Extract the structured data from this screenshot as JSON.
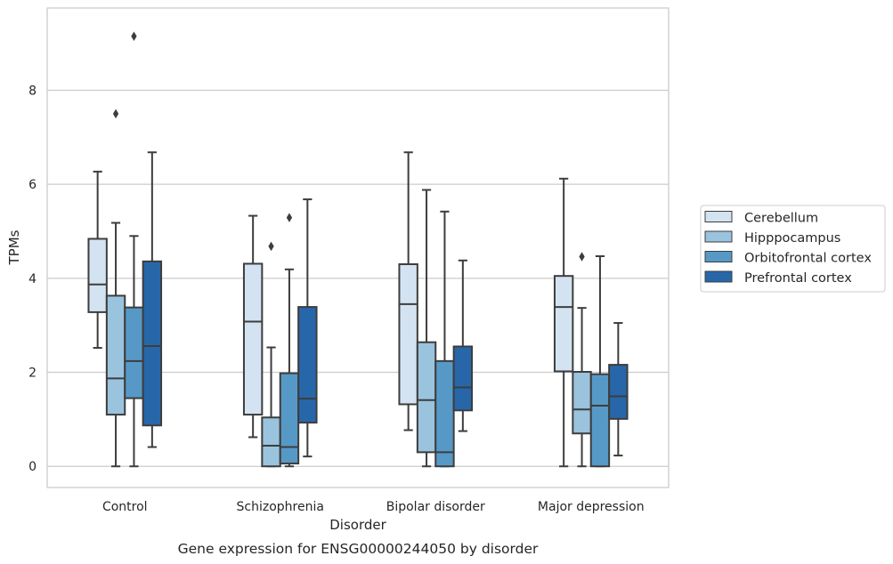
{
  "chart_data": {
    "type": "box",
    "title": "",
    "caption": "Gene expression for ENSG00000244050 by disorder",
    "xlabel": "Disorder",
    "ylabel": "TPMs",
    "ylim": [
      -0.45,
      9.75
    ],
    "yticks": [
      0,
      2,
      4,
      6,
      8
    ],
    "grid": "horizontal",
    "legend_position": "right",
    "categories": [
      "Control",
      "Schizophrenia",
      "Bipolar disorder",
      "Major depression"
    ],
    "series": [
      {
        "name": "Cerebellum",
        "color": "#d4e3f2",
        "boxes": [
          {
            "whisker_low": 2.52,
            "q1": 3.28,
            "median": 3.87,
            "q3": 4.84,
            "whisker_high": 6.27,
            "outliers": []
          },
          {
            "whisker_low": 0.62,
            "q1": 1.1,
            "median": 3.08,
            "q3": 4.31,
            "whisker_high": 5.33,
            "outliers": []
          },
          {
            "whisker_low": 0.77,
            "q1": 1.32,
            "median": 3.45,
            "q3": 4.3,
            "whisker_high": 6.68,
            "outliers": []
          },
          {
            "whisker_low": 0.0,
            "q1": 2.02,
            "median": 3.39,
            "q3": 4.05,
            "whisker_high": 6.12,
            "outliers": []
          }
        ]
      },
      {
        "name": "Hipppocampus",
        "color": "#9ac3de",
        "boxes": [
          {
            "whisker_low": 0.0,
            "q1": 1.1,
            "median": 1.87,
            "q3": 3.63,
            "whisker_high": 5.18,
            "outliers": [
              7.5
            ]
          },
          {
            "whisker_low": 0.0,
            "q1": 0.0,
            "median": 0.44,
            "q3": 1.04,
            "whisker_high": 2.53,
            "outliers": [
              4.68
            ]
          },
          {
            "whisker_low": 0.0,
            "q1": 0.3,
            "median": 1.41,
            "q3": 2.64,
            "whisker_high": 5.88,
            "outliers": []
          },
          {
            "whisker_low": 0.0,
            "q1": 0.7,
            "median": 1.21,
            "q3": 2.01,
            "whisker_high": 3.37,
            "outliers": [
              4.46
            ]
          }
        ]
      },
      {
        "name": "Orbitofrontal cortex",
        "color": "#5799c6",
        "boxes": [
          {
            "whisker_low": 0.0,
            "q1": 1.45,
            "median": 2.24,
            "q3": 3.38,
            "whisker_high": 4.9,
            "outliers": [
              9.15
            ]
          },
          {
            "whisker_low": 0.0,
            "q1": 0.06,
            "median": 0.41,
            "q3": 1.98,
            "whisker_high": 4.19,
            "outliers": [
              5.29
            ]
          },
          {
            "whisker_low": 0.0,
            "q1": 0.0,
            "median": 0.3,
            "q3": 2.24,
            "whisker_high": 5.42,
            "outliers": []
          },
          {
            "whisker_low": 0.0,
            "q1": 0.0,
            "median": 1.29,
            "q3": 1.96,
            "whisker_high": 4.47,
            "outliers": []
          }
        ]
      },
      {
        "name": "Prefrontal cortex",
        "color": "#2767a9",
        "boxes": [
          {
            "whisker_low": 0.41,
            "q1": 0.87,
            "median": 2.56,
            "q3": 4.36,
            "whisker_high": 6.68,
            "outliers": []
          },
          {
            "whisker_low": 0.21,
            "q1": 0.93,
            "median": 1.44,
            "q3": 3.39,
            "whisker_high": 5.68,
            "outliers": []
          },
          {
            "whisker_low": 0.75,
            "q1": 1.19,
            "median": 1.68,
            "q3": 2.55,
            "whisker_high": 4.38,
            "outliers": []
          },
          {
            "whisker_low": 0.23,
            "q1": 1.01,
            "median": 1.49,
            "q3": 2.16,
            "whisker_high": 3.05,
            "outliers": []
          }
        ]
      }
    ]
  }
}
